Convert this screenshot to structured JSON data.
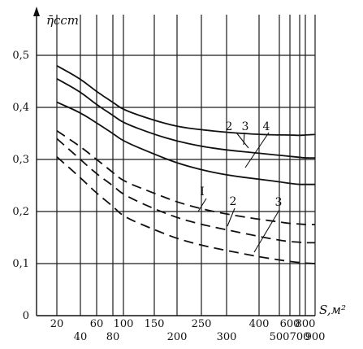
{
  "chart_data": {
    "type": "line",
    "title": "",
    "xlabel": "S,м²",
    "ylabel": "η̄сст",
    "x_scale": "irregular (printed tick labels)",
    "x_ticks_upper": [
      "20",
      "60",
      "100",
      "150",
      "250",
      "400",
      "600",
      "800"
    ],
    "x_ticks_lower": [
      "40",
      "80",
      "200",
      "300",
      "500",
      "700",
      "900"
    ],
    "y_ticks": [
      "0",
      "0,1",
      "0,2",
      "0,3",
      "0,4",
      "0,5"
    ],
    "ylim": [
      0,
      0.5
    ],
    "grid": true,
    "series": [
      {
        "name": "2",
        "style": "solid",
        "points": [
          [
            20,
            0.48
          ],
          [
            40,
            0.455
          ],
          [
            60,
            0.43
          ],
          [
            80,
            0.41
          ],
          [
            100,
            0.395
          ],
          [
            150,
            0.375
          ],
          [
            200,
            0.363
          ],
          [
            250,
            0.357
          ],
          [
            300,
            0.352
          ],
          [
            400,
            0.348
          ],
          [
            500,
            0.347
          ],
          [
            600,
            0.347
          ],
          [
            700,
            0.346
          ],
          [
            800,
            0.347
          ],
          [
            900,
            0.348
          ]
        ]
      },
      {
        "name": "3",
        "style": "solid",
        "points": [
          [
            20,
            0.455
          ],
          [
            40,
            0.43
          ],
          [
            60,
            0.405
          ],
          [
            80,
            0.385
          ],
          [
            100,
            0.37
          ],
          [
            150,
            0.348
          ],
          [
            200,
            0.335
          ],
          [
            250,
            0.325
          ],
          [
            300,
            0.318
          ],
          [
            400,
            0.312
          ],
          [
            500,
            0.308
          ],
          [
            600,
            0.306
          ],
          [
            700,
            0.304
          ],
          [
            800,
            0.303
          ],
          [
            900,
            0.303
          ]
        ]
      },
      {
        "name": "4",
        "style": "solid",
        "points": [
          [
            20,
            0.41
          ],
          [
            40,
            0.39
          ],
          [
            60,
            0.37
          ],
          [
            80,
            0.35
          ],
          [
            100,
            0.335
          ],
          [
            150,
            0.31
          ],
          [
            200,
            0.293
          ],
          [
            250,
            0.28
          ],
          [
            300,
            0.27
          ],
          [
            400,
            0.262
          ],
          [
            500,
            0.257
          ],
          [
            600,
            0.254
          ],
          [
            700,
            0.252
          ],
          [
            800,
            0.252
          ],
          [
            900,
            0.252
          ]
        ]
      },
      {
        "name": "I",
        "style": "dashed",
        "points": [
          [
            20,
            0.355
          ],
          [
            40,
            0.325
          ],
          [
            60,
            0.3
          ],
          [
            80,
            0.275
          ],
          [
            100,
            0.258
          ],
          [
            150,
            0.235
          ],
          [
            200,
            0.218
          ],
          [
            250,
            0.205
          ],
          [
            300,
            0.195
          ],
          [
            400,
            0.185
          ],
          [
            500,
            0.18
          ],
          [
            600,
            0.177
          ],
          [
            700,
            0.176
          ],
          [
            800,
            0.175
          ],
          [
            900,
            0.175
          ]
        ]
      },
      {
        "name": "2",
        "style": "dashed",
        "points": [
          [
            20,
            0.34
          ],
          [
            40,
            0.3
          ],
          [
            60,
            0.272
          ],
          [
            80,
            0.25
          ],
          [
            100,
            0.232
          ],
          [
            150,
            0.205
          ],
          [
            200,
            0.188
          ],
          [
            250,
            0.175
          ],
          [
            300,
            0.165
          ],
          [
            400,
            0.152
          ],
          [
            500,
            0.145
          ],
          [
            600,
            0.142
          ],
          [
            700,
            0.141
          ],
          [
            800,
            0.14
          ],
          [
            900,
            0.14
          ]
        ]
      },
      {
        "name": "3",
        "style": "dashed",
        "points": [
          [
            20,
            0.305
          ],
          [
            40,
            0.265
          ],
          [
            60,
            0.235
          ],
          [
            80,
            0.21
          ],
          [
            100,
            0.19
          ],
          [
            150,
            0.165
          ],
          [
            200,
            0.148
          ],
          [
            250,
            0.135
          ],
          [
            300,
            0.125
          ],
          [
            400,
            0.113
          ],
          [
            500,
            0.107
          ],
          [
            600,
            0.104
          ],
          [
            700,
            0.102
          ],
          [
            800,
            0.101
          ],
          [
            900,
            0.1
          ]
        ]
      }
    ],
    "curve_labels": [
      "2",
      "3",
      "4",
      "I",
      "2",
      "3"
    ]
  }
}
